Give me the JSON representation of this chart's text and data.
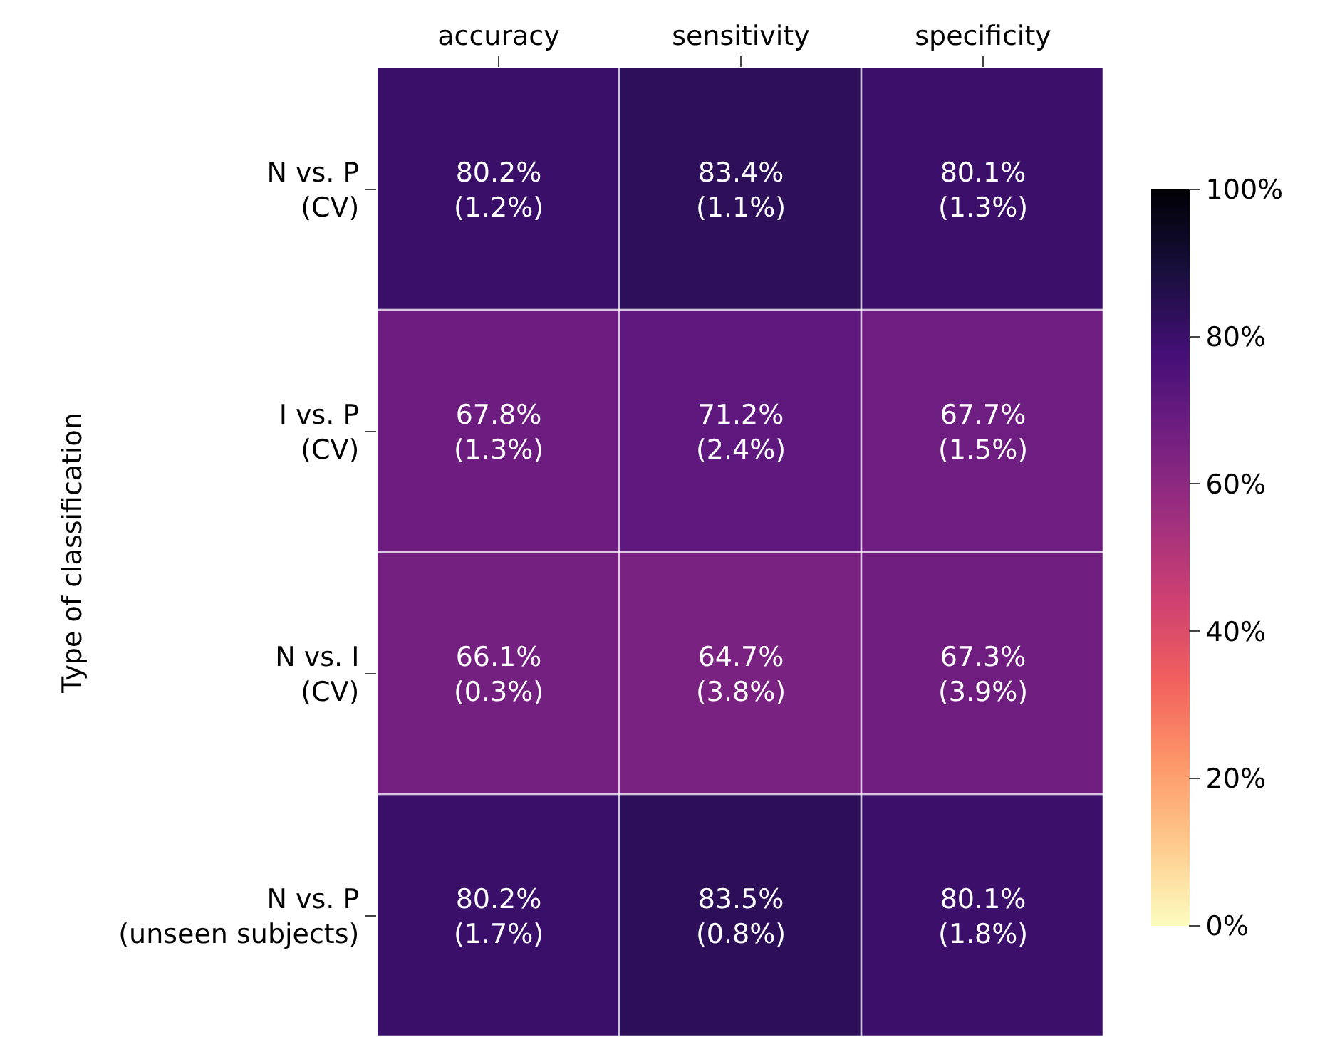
{
  "chart_data": {
    "type": "heatmap",
    "ylabel": "Type of classification",
    "categories": [
      "accuracy",
      "sensitivity",
      "specificity"
    ],
    "y_categories": [
      "N vs. P\n(CV)",
      "I vs. P\n(CV)",
      "N vs. I\n(CV)",
      "N vs. P\n(unseen subjects)"
    ],
    "cells": [
      [
        80.2,
        83.4,
        80.1
      ],
      [
        67.8,
        71.2,
        67.7
      ],
      [
        66.1,
        64.7,
        67.3
      ],
      [
        80.2,
        83.5,
        80.1
      ]
    ],
    "cell_labels": [
      [
        "80.2%\n(1.2%)",
        "83.4%\n(1.1%)",
        "80.1%\n(1.3%)"
      ],
      [
        "67.8%\n(1.3%)",
        "71.2%\n(2.4%)",
        "67.7%\n(1.5%)"
      ],
      [
        "66.1%\n(0.3%)",
        "64.7%\n(3.8%)",
        "67.3%\n(3.9%)"
      ],
      [
        "80.2%\n(1.7%)",
        "83.5%\n(0.8%)",
        "80.1%\n(1.8%)"
      ]
    ],
    "clim": [
      0,
      100
    ],
    "cticks": [
      {
        "value": 0,
        "label": "0%"
      },
      {
        "value": 20,
        "label": "20%"
      },
      {
        "value": 40,
        "label": "40%"
      },
      {
        "value": 60,
        "label": "60%"
      },
      {
        "value": 80,
        "label": "80%"
      },
      {
        "value": 100,
        "label": "100%"
      }
    ]
  }
}
